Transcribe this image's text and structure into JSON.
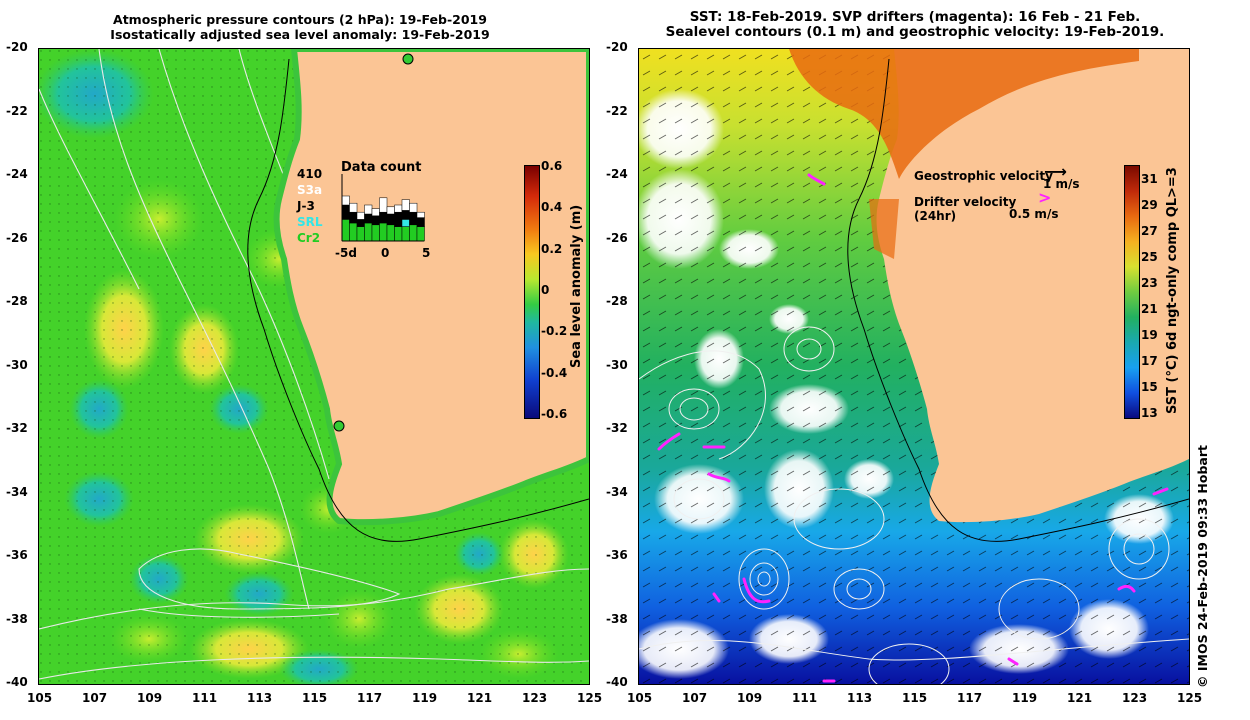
{
  "left_panel": {
    "title_line1": "Atmospheric pressure contours (2 hPa): 19-Feb-2019",
    "title_line2": "Isostatically adjusted sea level anomaly: 19-Feb-2019",
    "colorbar_label": "Sea level anomaly (m)",
    "colorbar_ticks": [
      "0.6",
      "0.4",
      "0.2",
      "0",
      "-0.2",
      "-0.4",
      "-0.6"
    ],
    "data_count": {
      "title": "Data count",
      "total": "410",
      "missions": [
        "S3a",
        "J-3",
        "SRL",
        "Cr2"
      ],
      "mission_colors": [
        "#ffffff",
        "#000000",
        "#33e6e6",
        "#22cc22"
      ],
      "axis_labels": [
        "-5d",
        "0",
        "5"
      ]
    }
  },
  "right_panel": {
    "title_line1": "SST: 18-Feb-2019. SVP drifters (magenta): 16 Feb - 21 Feb.",
    "title_line2": "Sealevel contours (0.1 m) and geostrophic velocity: 19-Feb-2019.",
    "colorbar_label": "SST (°C) 6d ngt-only comp QL>=3",
    "colorbar_ticks": [
      "31",
      "29",
      "27",
      "25",
      "23",
      "21",
      "19",
      "17",
      "15",
      "13"
    ],
    "legend": {
      "geostrophic_label": "Geostrophic velocity",
      "geostrophic_scale": "1 m/s",
      "drifter_label": "Drifter velocity",
      "drifter_sub": "(24hr)",
      "drifter_scale": "0.5 m/s"
    }
  },
  "axes": {
    "lat_ticks": [
      "-20",
      "-22",
      "-24",
      "-26",
      "-28",
      "-30",
      "-32",
      "-34",
      "-36",
      "-38",
      "-40"
    ],
    "lon_ticks": [
      "105",
      "107",
      "109",
      "111",
      "113",
      "115",
      "117",
      "119",
      "121",
      "123",
      "125"
    ]
  },
  "credit": "© IMOS 24-Feb-2019 09:33 Hobart"
}
